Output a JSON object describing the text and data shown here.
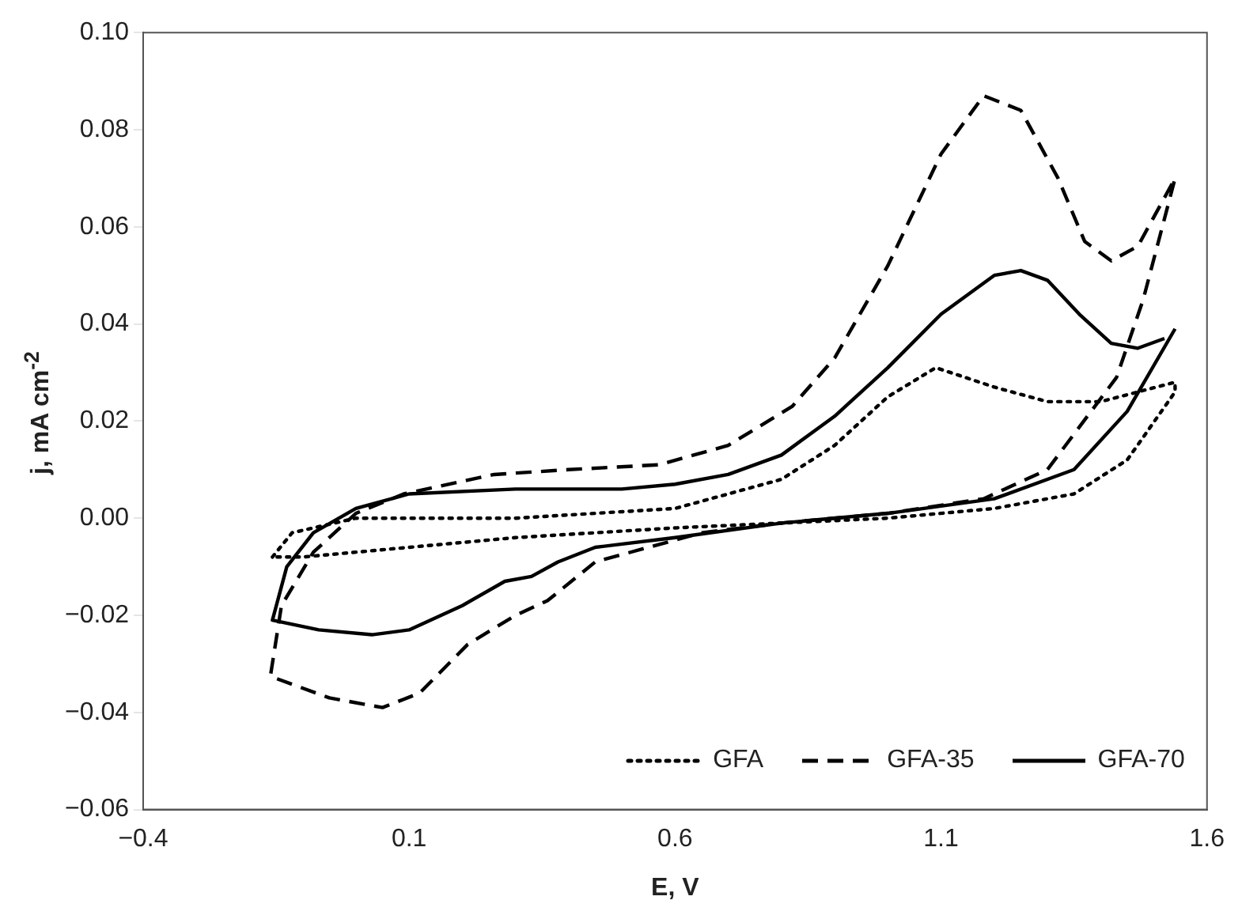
{
  "chart_data": {
    "type": "line",
    "xlabel": "E, V",
    "ylabel": "j, mA cm$^{-2}$",
    "xlim": [
      -0.4,
      1.6
    ],
    "xticks": [
      {
        "value": -0.4,
        "label": "−0.4"
      },
      0.1,
      0.6,
      1.1,
      1.6
    ],
    "ylim": [
      -0.06,
      0.1
    ],
    "yticks": [
      {
        "value": -0.06,
        "label": "−0.06"
      },
      {
        "value": -0.04,
        "label": "−0.04"
      },
      {
        "value": -0.02,
        "label": "−0.02"
      },
      {
        "value": 0,
        "label": "0.00"
      },
      {
        "value": 0.02,
        "label": "0.02"
      },
      {
        "value": 0.04,
        "label": "0.04"
      },
      {
        "value": 0.06,
        "label": "0.06"
      },
      {
        "value": 0.08,
        "label": "0.08"
      },
      {
        "value": 0.1,
        "label": "0.10"
      }
    ],
    "grid": false,
    "legend": "bottom right",
    "marker": "none",
    "series": [
      {
        "name": "GFA",
        "color": "#000000",
        "line_style": "dotted",
        "x": [
          -0.157,
          -0.12,
          0.0,
          0.3,
          0.6,
          0.8,
          0.9,
          1.0,
          1.09,
          1.2,
          1.3,
          1.4,
          1.54,
          1.54,
          1.45,
          1.35,
          1.2,
          1.0,
          0.6,
          0.3,
          0.0,
          -0.1,
          -0.15
        ],
        "values": [
          -0.008,
          -0.003,
          0.0,
          0.0,
          0.002,
          0.008,
          0.015,
          0.025,
          0.031,
          0.027,
          0.024,
          0.024,
          0.028,
          0.026,
          0.012,
          0.005,
          0.002,
          0.0,
          -0.002,
          -0.004,
          -0.007,
          -0.008,
          -0.008
        ]
      },
      {
        "name": "GFA-35",
        "color": "#000000",
        "line_style": "dashed",
        "x": [
          -0.16,
          -0.14,
          -0.08,
          0.0,
          0.09,
          0.26,
          0.4,
          0.57,
          0.7,
          0.82,
          0.9,
          1.0,
          1.1,
          1.18,
          1.25,
          1.32,
          1.37,
          1.42,
          1.47,
          1.54,
          1.48,
          1.43,
          1.3,
          1.18,
          1.0,
          0.8,
          0.65,
          0.45,
          0.36,
          0.3,
          0.21,
          0.12,
          0.05,
          -0.05,
          -0.15
        ],
        "values": [
          -0.032,
          -0.018,
          -0.007,
          0.001,
          0.005,
          0.009,
          0.01,
          0.011,
          0.015,
          0.023,
          0.033,
          0.052,
          0.075,
          0.087,
          0.084,
          0.07,
          0.057,
          0.053,
          0.056,
          0.07,
          0.045,
          0.029,
          0.01,
          0.004,
          0.001,
          -0.001,
          -0.003,
          -0.009,
          -0.017,
          -0.02,
          -0.026,
          -0.036,
          -0.039,
          -0.037,
          -0.033
        ]
      },
      {
        "name": "GFA-70",
        "color": "#000000",
        "line_style": "solid",
        "x": [
          1.54,
          1.45,
          1.35,
          1.2,
          1.0,
          0.8,
          0.6,
          0.45,
          0.38,
          0.33,
          0.28,
          0.2,
          0.1,
          0.03,
          -0.07,
          -0.157,
          -0.13,
          -0.08,
          0.0,
          0.1,
          0.3,
          0.5,
          0.6,
          0.7,
          0.8,
          0.9,
          1.0,
          1.1,
          1.2,
          1.25,
          1.3,
          1.36,
          1.42,
          1.47,
          1.52
        ],
        "values": [
          0.039,
          0.022,
          0.01,
          0.004,
          0.001,
          -0.001,
          -0.004,
          -0.006,
          -0.009,
          -0.012,
          -0.013,
          -0.018,
          -0.023,
          -0.024,
          -0.023,
          -0.021,
          -0.01,
          -0.003,
          0.002,
          0.005,
          0.006,
          0.006,
          0.007,
          0.009,
          0.013,
          0.021,
          0.031,
          0.042,
          0.05,
          0.051,
          0.049,
          0.042,
          0.036,
          0.035,
          0.037
        ]
      }
    ]
  }
}
